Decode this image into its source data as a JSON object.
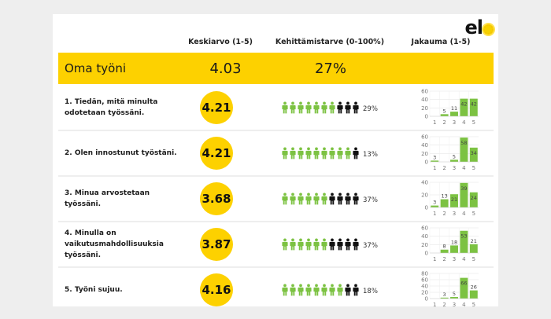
{
  "logo": {
    "text": "el",
    "icon": "sun-o-icon"
  },
  "columns": {
    "average": "Keskiarvo (1-5)",
    "development_need": "Kehittämistarve (0-100%)",
    "distribution": "Jakauma (1-5)"
  },
  "summary": {
    "label": "Oma työni",
    "average": "4.03",
    "development_need": "27%"
  },
  "colors": {
    "accent_yellow": "#fdd100",
    "bar_green": "#7cc242",
    "figure_black": "#111111",
    "background": "#eeeeee"
  },
  "questions": [
    {
      "label": "1. Tiedän, mitä minulta odotetaan työssäni.",
      "score": "4.21",
      "need_pct": "29%",
      "green_figures": 7,
      "black_figures": 3
    },
    {
      "label": "2. Olen innostunut työstäni.",
      "score": "4.21",
      "need_pct": "13%",
      "green_figures": 9,
      "black_figures": 1
    },
    {
      "label": "3. Minua arvostetaan työssäni.",
      "score": "3.68",
      "need_pct": "37%",
      "green_figures": 6,
      "black_figures": 4
    },
    {
      "label": "4. Minulla on vaikutusmahdollisuuksia työssäni.",
      "score": "3.87",
      "need_pct": "37%",
      "green_figures": 6,
      "black_figures": 4
    },
    {
      "label": "5. Työni sujuu.",
      "score": "4.16",
      "need_pct": "18%",
      "green_figures": 8,
      "black_figures": 2
    }
  ],
  "chart_data": [
    {
      "type": "bar",
      "title": "Jakauma (1-5) — 1. Tiedän, mitä minulta odotetaan työssäni.",
      "categories": [
        "1",
        "2",
        "3",
        "4",
        "5"
      ],
      "values": [
        0,
        5,
        11,
        42,
        42
      ],
      "yticks": [
        0,
        20,
        40,
        60
      ],
      "ylim": [
        0,
        60
      ]
    },
    {
      "type": "bar",
      "title": "Jakauma (1-5) — 2. Olen innostunut työstäni.",
      "categories": [
        "1",
        "2",
        "3",
        "4",
        "5"
      ],
      "values": [
        3,
        0,
        5,
        58,
        34
      ],
      "yticks": [
        0,
        20,
        40,
        60
      ],
      "ylim": [
        0,
        60
      ]
    },
    {
      "type": "bar",
      "title": "Jakauma (1-5) — 3. Minua arvostetaan työssäni.",
      "categories": [
        "1",
        "2",
        "3",
        "4",
        "5"
      ],
      "values": [
        3,
        13,
        21,
        39,
        24
      ],
      "yticks": [
        0,
        20,
        40
      ],
      "ylim": [
        0,
        40
      ]
    },
    {
      "type": "bar",
      "title": "Jakauma (1-5) — 4. Minulla on vaikutusmahdollisuuksia työssäni.",
      "categories": [
        "1",
        "2",
        "3",
        "4",
        "5"
      ],
      "values": [
        0,
        8,
        18,
        53,
        21
      ],
      "yticks": [
        0,
        20,
        40,
        60
      ],
      "ylim": [
        0,
        60
      ]
    },
    {
      "type": "bar",
      "title": "Jakauma (1-5) — 5. Työni sujuu.",
      "categories": [
        "1",
        "2",
        "3",
        "4",
        "5"
      ],
      "values": [
        0,
        3,
        5,
        66,
        26
      ],
      "yticks": [
        0,
        20,
        40,
        60,
        80
      ],
      "ylim": [
        0,
        80
      ]
    }
  ]
}
